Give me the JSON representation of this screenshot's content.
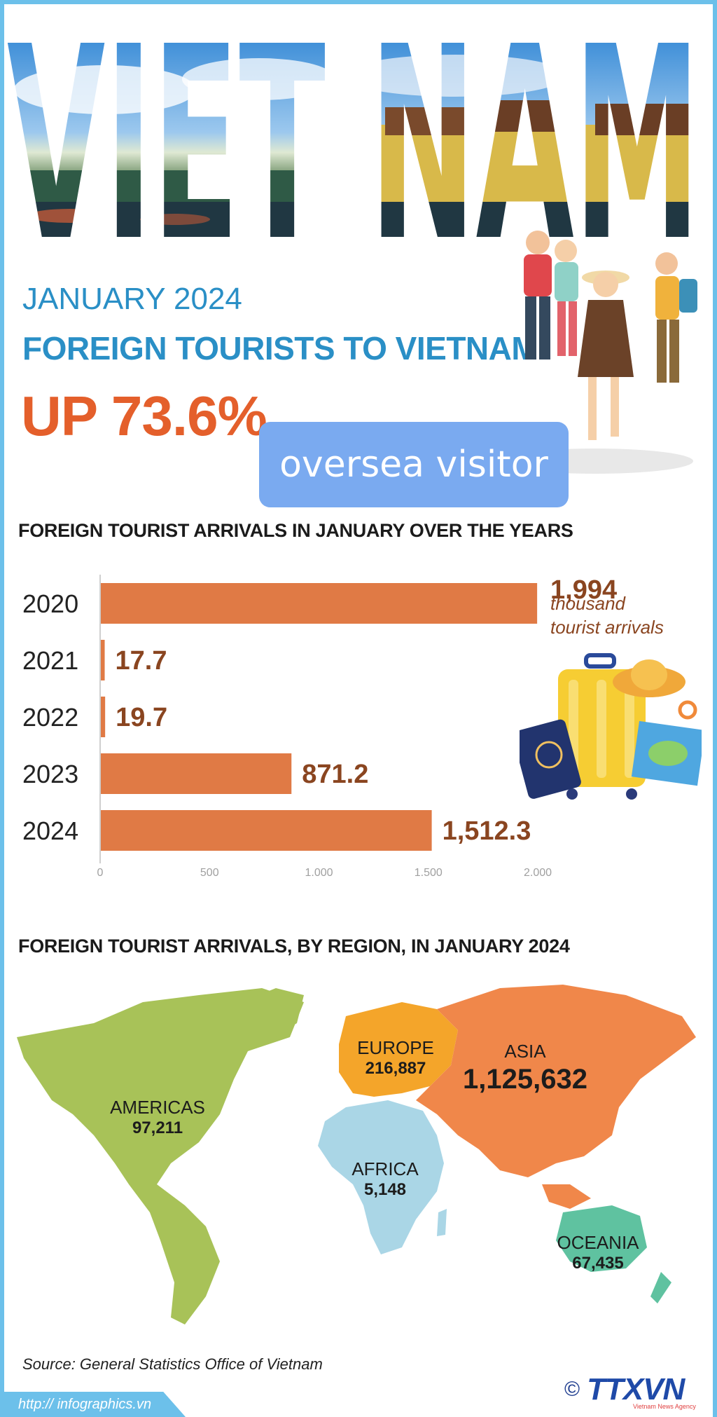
{
  "hero": {
    "word": "VIET NAM",
    "month": "JANUARY 2024",
    "subtitle": "FOREIGN TOURISTS TO VIETNAM",
    "headline": "UP 73.6%"
  },
  "overlay": {
    "text": "oversea visitor"
  },
  "bar_section": {
    "title": "FOREIGN TOURIST ARRIVALS IN JANUARY OVER THE YEARS"
  },
  "map_section": {
    "title": "FOREIGN TOURIST ARRIVALS, BY REGION, IN JANUARY 2024"
  },
  "chart_data": [
    {
      "type": "bar",
      "orientation": "horizontal",
      "title": "FOREIGN TOURIST ARRIVALS IN JANUARY OVER THE YEARS",
      "categories": [
        "2020",
        "2021",
        "2022",
        "2023",
        "2024"
      ],
      "values": [
        1994,
        17.7,
        19.7,
        871.2,
        1512.3
      ],
      "value_labels": [
        "1,994",
        "17.7",
        "19.7",
        "871.2",
        "1,512.3"
      ],
      "unit_note": "thousand tourist arrivals",
      "xlim": [
        0,
        2000
      ],
      "xticks": [
        0,
        500,
        1000,
        1500,
        2000
      ],
      "xtick_labels": [
        "0",
        "500",
        "1.000",
        "1.500",
        "2.000"
      ],
      "bar_color": "#e07a45",
      "value_color": "#8a4520"
    },
    {
      "type": "map",
      "title": "FOREIGN TOURIST ARRIVALS, BY REGION, IN JANUARY 2024",
      "regions": [
        {
          "name": "EUROPE",
          "value": "216,887",
          "color": "#f4a52a"
        },
        {
          "name": "ASIA",
          "value": "1,125,632",
          "color": "#f0874a"
        },
        {
          "name": "AMERICAS",
          "value": "97,211",
          "color": "#a8c258"
        },
        {
          "name": "AFRICA",
          "value": "5,148",
          "color": "#aad6e6"
        },
        {
          "name": "OCEANIA",
          "value": "67,435",
          "color": "#5fc2a0"
        }
      ]
    }
  ],
  "footer": {
    "source": "Source: General Statistics Office of Vietnam",
    "copyright": "©",
    "agency": "TTXVN",
    "agency_sub": "Vietnam News Agency",
    "url": "http:// infographics.vn"
  }
}
